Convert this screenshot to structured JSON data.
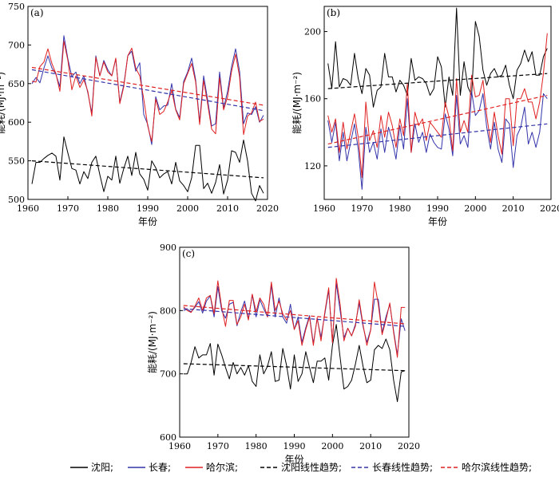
{
  "series_colors": {
    "shenyang": "#000000",
    "changchun": "#3333aa",
    "harbin": "#e02020"
  },
  "legend": [
    {
      "label": "沈阳;",
      "color": "#000000",
      "dash": false
    },
    {
      "label": "长春;",
      "color": "#3333aa",
      "dash": false
    },
    {
      "label": "哈尔滨;",
      "color": "#e02020",
      "dash": false
    },
    {
      "label": "沈阳线性趋势;",
      "color": "#000000",
      "dash": true
    },
    {
      "label": "长春线性趋势;",
      "color": "#3333aa",
      "dash": true
    },
    {
      "label": "哈尔滨线性趋势;",
      "color": "#e02020",
      "dash": true
    }
  ],
  "chart_data": [
    {
      "panel": "(a)",
      "type": "line",
      "xlabel": "年份",
      "ylabel": "能耗/(MJ·m⁻²)",
      "xlim": [
        1960,
        2020
      ],
      "ylim": [
        500,
        750
      ],
      "xticks": [
        1960,
        1970,
        1980,
        1990,
        2000,
        2010,
        2020
      ],
      "yticks": [
        500,
        550,
        600,
        650,
        700,
        750
      ],
      "x_start": 1961,
      "series": [
        {
          "name": "沈阳",
          "color": "#000000",
          "values": [
            520,
            548,
            548,
            553,
            557,
            560,
            556,
            525,
            581,
            560,
            540,
            538,
            520,
            536,
            527,
            548,
            556,
            532,
            510,
            530,
            525,
            556,
            521,
            540,
            556,
            531,
            561,
            533,
            526,
            512,
            550,
            541,
            528,
            533,
            536,
            520,
            548,
            524,
            518,
            510,
            528,
            570,
            570,
            514,
            521,
            508,
            522,
            545,
            507,
            525,
            563,
            561,
            548,
            577,
            550,
            508,
            498,
            518,
            508
          ]
        },
        {
          "name": "长春",
          "color": "#3333aa",
          "values": [
            650,
            658,
            651,
            670,
            686,
            670,
            662,
            646,
            712,
            682,
            659,
            665,
            650,
            660,
            638,
            612,
            686,
            660,
            680,
            668,
            660,
            682,
            626,
            648,
            686,
            692,
            666,
            677,
            610,
            597,
            571,
            633,
            616,
            621,
            622,
            650,
            617,
            606,
            653,
            665,
            683,
            655,
            600,
            660,
            629,
            595,
            598,
            665,
            618,
            640,
            672,
            695,
            666,
            598,
            612,
            610,
            620,
            600,
            609
          ]
        },
        {
          "name": "哈尔滨",
          "color": "#e02020",
          "values": [
            653,
            652,
            672,
            678,
            695,
            676,
            663,
            640,
            705,
            680,
            642,
            660,
            645,
            655,
            640,
            608,
            684,
            660,
            678,
            665,
            660,
            683,
            624,
            646,
            686,
            696,
            670,
            660,
            630,
            595,
            575,
            630,
            610,
            614,
            626,
            641,
            616,
            603,
            650,
            663,
            676,
            652,
            597,
            654,
            624,
            591,
            585,
            658,
            616,
            633,
            666,
            688,
            659,
            584,
            608,
            612,
            626,
            601,
            604
          ]
        }
      ],
      "trends": [
        {
          "name": "沈阳线性趋势",
          "color": "#000000",
          "y_start": 550,
          "y_end": 528
        },
        {
          "name": "长春线性趋势",
          "color": "#3333aa",
          "y_start": 668,
          "y_end": 615
        },
        {
          "name": "哈尔滨线性趋势",
          "color": "#e02020",
          "y_start": 671,
          "y_end": 622
        }
      ]
    },
    {
      "panel": "(b)",
      "type": "line",
      "xlabel": "年份",
      "ylabel": "能耗/(MJ·m⁻²)",
      "xlim": [
        1960,
        2020
      ],
      "ylim": [
        100,
        215
      ],
      "xticks": [
        1960,
        1970,
        1980,
        1990,
        2000,
        2010,
        2020
      ],
      "yticks": [
        120,
        160,
        200
      ],
      "x_start": 1961,
      "series": [
        {
          "name": "沈阳",
          "color": "#000000",
          "values": [
            181,
            166,
            194,
            167,
            172,
            171,
            168,
            187,
            172,
            163,
            178,
            174,
            155,
            165,
            167,
            187,
            173,
            173,
            164,
            171,
            168,
            162,
            184,
            171,
            173,
            172,
            169,
            162,
            166,
            185,
            179,
            155,
            173,
            162,
            214,
            162,
            182,
            167,
            162,
            206,
            197,
            177,
            168,
            175,
            178,
            173,
            174,
            180,
            168,
            160,
            177,
            181,
            189,
            182,
            188,
            174,
            174,
            185,
            190
          ]
        },
        {
          "name": "长春",
          "color": "#3333aa",
          "values": [
            147,
            134,
            146,
            123,
            140,
            123,
            134,
            145,
            130,
            106,
            143,
            128,
            134,
            124,
            142,
            128,
            143,
            135,
            124,
            144,
            130,
            160,
            128,
            145,
            134,
            140,
            128,
            139,
            134,
            131,
            130,
            151,
            142,
            126,
            162,
            133,
            138,
            131,
            164,
            150,
            153,
            163,
            143,
            130,
            146,
            130,
            122,
            148,
            145,
            119,
            138,
            143,
            155,
            133,
            140,
            131,
            140,
            163,
            160
          ]
        },
        {
          "name": "哈尔滨",
          "color": "#e02020",
          "values": [
            150,
            140,
            148,
            128,
            146,
            130,
            140,
            151,
            137,
            113,
            158,
            135,
            141,
            131,
            150,
            137,
            152,
            144,
            131,
            148,
            138,
            169,
            128,
            152,
            144,
            148,
            135,
            146,
            143,
            140,
            137,
            158,
            149,
            129,
            172,
            140,
            147,
            140,
            174,
            161,
            162,
            171,
            150,
            134,
            152,
            138,
            127,
            160,
            160,
            132,
            160,
            160,
            166,
            158,
            158,
            148,
            158,
            175,
            199
          ]
        }
      ],
      "trends": [
        {
          "name": "沈阳线性趋势",
          "color": "#000000",
          "y_start": 166,
          "y_end": 175
        },
        {
          "name": "长春线性趋势",
          "color": "#3333aa",
          "y_start": 131,
          "y_end": 145
        },
        {
          "name": "哈尔滨线性趋势",
          "color": "#e02020",
          "y_start": 133,
          "y_end": 162
        }
      ]
    },
    {
      "panel": "(c)",
      "type": "line",
      "xlabel": "年份",
      "ylabel": "能耗/(MJ·m⁻²)",
      "xlim": [
        1960,
        2020
      ],
      "ylim": [
        600,
        900
      ],
      "xticks": [
        1960,
        1970,
        1980,
        1990,
        2000,
        2010,
        2020
      ],
      "yticks": [
        600,
        700,
        800,
        900
      ],
      "x_start": 1961,
      "series": [
        {
          "name": "沈阳",
          "color": "#000000",
          "values": [
            700,
            700,
            718,
            743,
            725,
            730,
            730,
            748,
            698,
            747,
            730,
            710,
            692,
            718,
            700,
            710,
            698,
            713,
            688,
            680,
            730,
            700,
            712,
            735,
            688,
            690,
            740,
            713,
            676,
            730,
            688,
            700,
            735,
            710,
            686,
            720,
            720,
            725,
            690,
            745,
            778,
            726,
            676,
            680,
            690,
            715,
            745,
            712,
            686,
            690,
            738,
            745,
            740,
            755,
            738,
            690,
            656,
            703,
            705
          ]
        },
        {
          "name": "长春",
          "color": "#3333aa",
          "values": [
            800,
            802,
            798,
            805,
            814,
            796,
            815,
            823,
            790,
            838,
            800,
            788,
            810,
            813,
            776,
            798,
            815,
            787,
            825,
            790,
            817,
            803,
            790,
            840,
            790,
            820,
            790,
            780,
            810,
            770,
            790,
            750,
            773,
            792,
            748,
            787,
            758,
            795,
            832,
            750,
            843,
            800,
            757,
            772,
            760,
            778,
            812,
            775,
            750,
            770,
            818,
            818,
            765,
            790,
            810,
            768,
            730,
            787,
            768
          ]
        },
        {
          "name": "哈尔滨",
          "color": "#e02020",
          "values": [
            806,
            800,
            797,
            807,
            820,
            800,
            820,
            824,
            795,
            847,
            805,
            775,
            816,
            816,
            778,
            790,
            810,
            785,
            826,
            798,
            820,
            810,
            790,
            845,
            800,
            815,
            795,
            785,
            800,
            770,
            784,
            745,
            770,
            790,
            745,
            789,
            752,
            798,
            836,
            749,
            851,
            810,
            752,
            772,
            760,
            775,
            817,
            778,
            745,
            769,
            845,
            810,
            762,
            785,
            812,
            765,
            726,
            805,
            805
          ]
        }
      ],
      "trends": [
        {
          "name": "沈阳线性趋势",
          "color": "#000000",
          "y_start": 716,
          "y_end": 705
        },
        {
          "name": "长春线性趋势",
          "color": "#3333aa",
          "y_start": 803,
          "y_end": 775
        },
        {
          "name": "哈尔滨线性趋势",
          "color": "#e02020",
          "y_start": 808,
          "y_end": 779
        }
      ]
    }
  ]
}
